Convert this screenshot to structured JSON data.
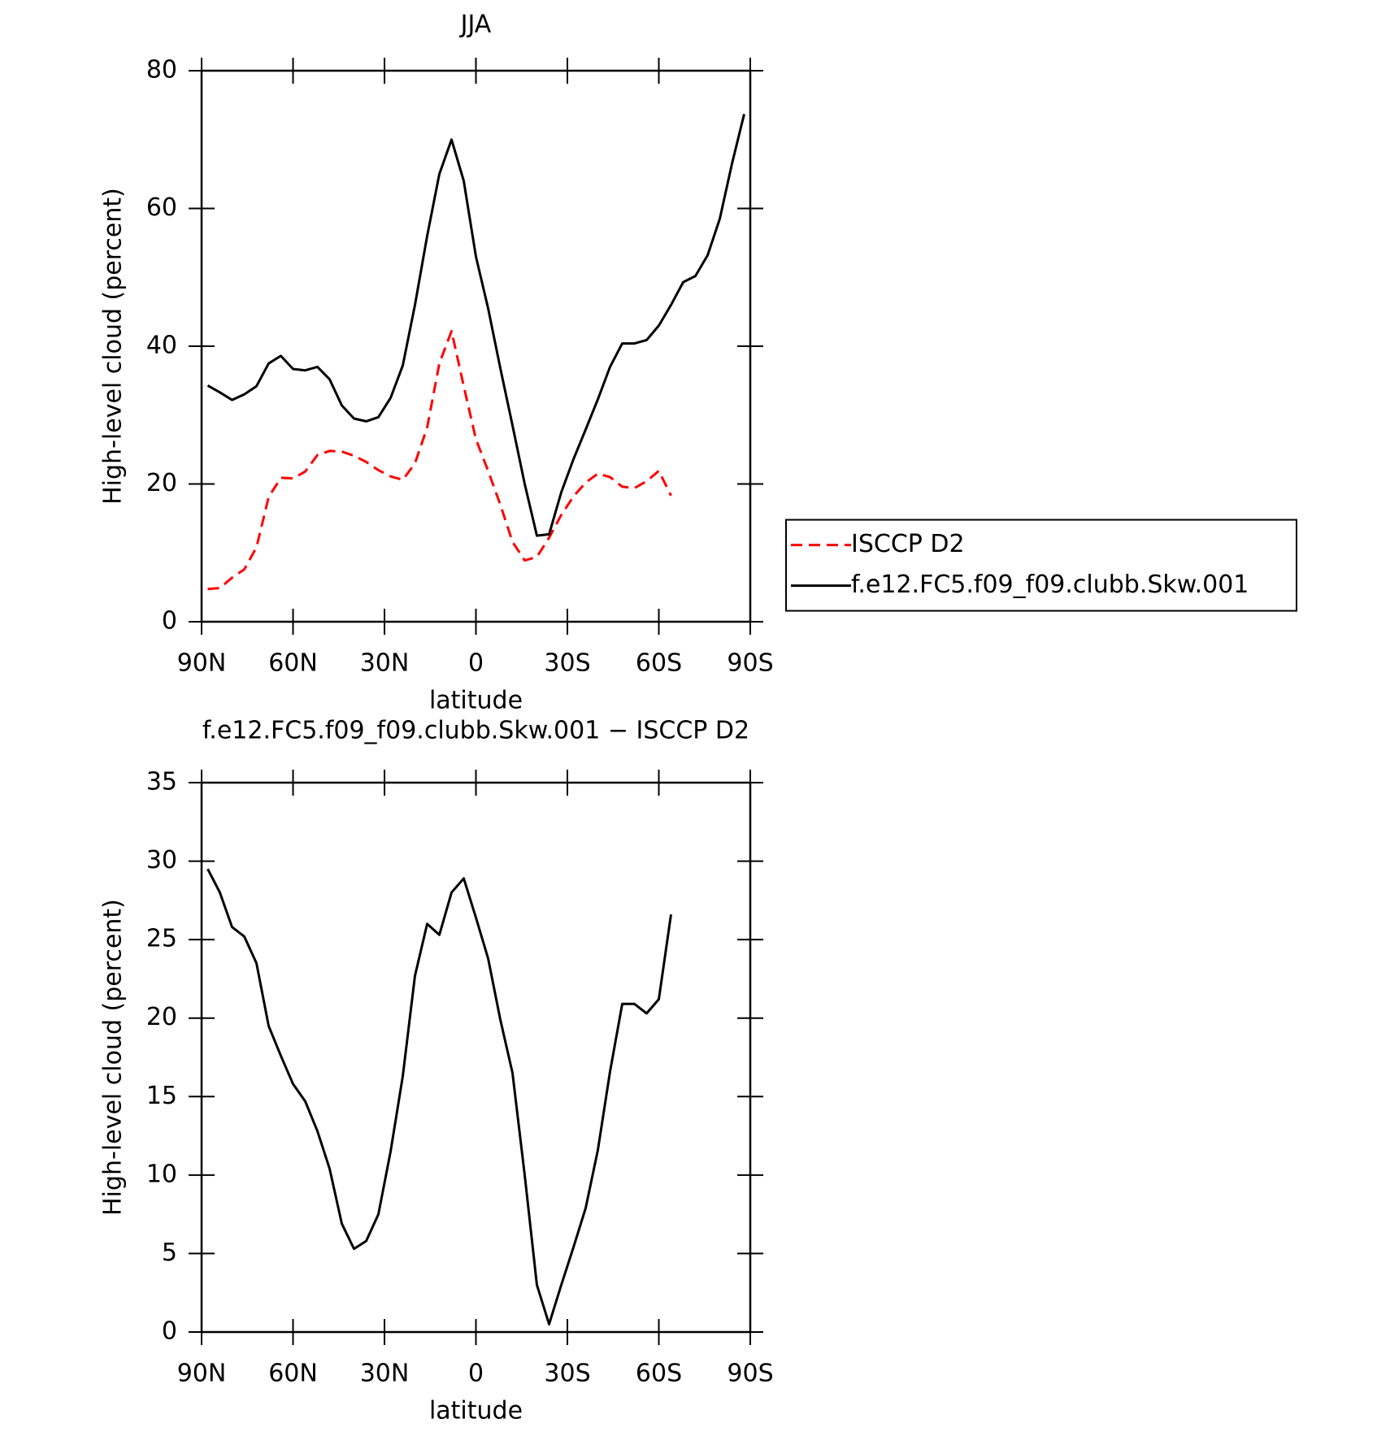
{
  "chart_data": [
    {
      "type": "line",
      "title": "JJA",
      "xlabel": "latitude",
      "ylabel": "High-level cloud (percent)",
      "x": [
        88,
        84,
        80,
        76,
        72,
        68,
        64,
        60,
        56,
        52,
        48,
        44,
        40,
        36,
        32,
        28,
        24,
        20,
        16,
        12,
        8,
        4,
        0,
        -4,
        -8,
        -12,
        -16,
        -20,
        -24,
        -28,
        -32,
        -36,
        -40,
        -44,
        -48,
        -52,
        -56,
        -60,
        -64,
        -68,
        -72,
        -76,
        -80,
        -84,
        -88
      ],
      "xlim": [
        90,
        -90
      ],
      "xticks": [
        {
          "value": 90,
          "label": "90N"
        },
        {
          "value": 60,
          "label": "60N"
        },
        {
          "value": 30,
          "label": "30N"
        },
        0,
        {
          "value": -30,
          "label": "30S"
        },
        {
          "value": -60,
          "label": "60S"
        },
        {
          "value": -90,
          "label": "90S"
        }
      ],
      "ylim": [
        0,
        80
      ],
      "yticks": [
        0,
        20,
        40,
        60,
        80
      ],
      "legend": "right",
      "series": [
        {
          "name": "ISCCP D2",
          "color": "#ff0000",
          "dash": "dashed",
          "values": [
            4.75,
            4.9,
            6.4,
            7.6,
            10.8,
            18.1,
            20.9,
            20.8,
            21.8,
            24.2,
            24.8,
            24.7,
            24.1,
            23.2,
            22.0,
            21.1,
            20.6,
            23.0,
            28.2,
            37.5,
            42.2,
            34.2,
            26.5,
            21.9,
            17.0,
            11.6,
            8.9,
            9.4,
            12.2,
            15.5,
            18.2,
            20.2,
            21.5,
            21.0,
            19.6,
            19.4,
            20.4,
            21.9,
            18.3,
            null,
            null,
            null,
            null,
            null,
            null
          ]
        },
        {
          "name": "f.e12.FC5.f09_f09.clubb.Skw.001",
          "color": "#000000",
          "dash": "solid",
          "values": [
            34.3,
            33.3,
            32.2,
            33.0,
            34.2,
            37.5,
            38.6,
            36.7,
            36.5,
            37.0,
            35.2,
            31.4,
            29.5,
            29.1,
            29.7,
            32.5,
            37.2,
            46.0,
            56.0,
            65.0,
            70.0,
            64.0,
            53.0,
            45.5,
            36.8,
            28.5,
            20.0,
            12.5,
            12.7,
            18.8,
            23.6,
            27.9,
            32.3,
            37.0,
            40.4,
            40.4,
            40.9,
            43.0,
            46.0,
            49.3,
            50.2,
            53.2,
            58.5,
            66.5,
            73.7
          ]
        }
      ]
    },
    {
      "type": "line",
      "title": "f.e12.FC5.f09_f09.clubb.Skw.001 − ISCCP D2",
      "xlabel": "latitude",
      "ylabel": "High-level cloud (percent)",
      "x": [
        88,
        84,
        80,
        76,
        72,
        68,
        64,
        60,
        56,
        52,
        48,
        44,
        40,
        36,
        32,
        28,
        24,
        20,
        16,
        12,
        8,
        4,
        0,
        -4,
        -8,
        -12,
        -16,
        -20,
        -24,
        -28,
        -32,
        -36,
        -40,
        -44,
        -48,
        -52,
        -56,
        -60,
        -64,
        -68,
        -72,
        -76,
        -80,
        -84,
        -88
      ],
      "xlim": [
        90,
        -90
      ],
      "xticks": [
        {
          "value": 90,
          "label": "90N"
        },
        {
          "value": 60,
          "label": "60N"
        },
        {
          "value": 30,
          "label": "30N"
        },
        0,
        {
          "value": -30,
          "label": "30S"
        },
        {
          "value": -60,
          "label": "60S"
        },
        {
          "value": -90,
          "label": "90S"
        }
      ],
      "ylim": [
        0,
        35
      ],
      "yticks": [
        0,
        5,
        10,
        15,
        20,
        25,
        30,
        35
      ],
      "color": "#000000",
      "values": [
        29.5,
        28.0,
        25.8,
        25.2,
        23.5,
        19.5,
        17.6,
        15.8,
        14.7,
        12.8,
        10.4,
        6.9,
        5.3,
        5.8,
        7.5,
        11.5,
        16.3,
        22.7,
        26.0,
        25.3,
        28.0,
        28.9,
        26.4,
        23.8,
        19.9,
        16.5,
        10.0,
        3.0,
        0.5,
        3.0,
        5.4,
        7.9,
        11.6,
        16.6,
        20.9,
        20.9,
        20.3,
        21.2,
        26.6,
        null,
        null,
        null,
        null,
        null,
        null
      ]
    }
  ]
}
